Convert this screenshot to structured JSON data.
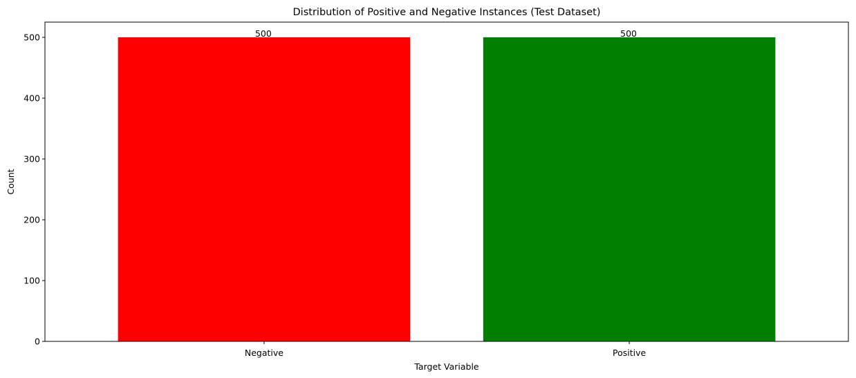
{
  "chart_data": {
    "type": "bar",
    "title": "Distribution of Positive and Negative Instances (Test Dataset)",
    "xlabel": "Target Variable",
    "ylabel": "Count",
    "categories": [
      "Negative",
      "Positive"
    ],
    "values": [
      500,
      500
    ],
    "data_labels": [
      "500",
      "500"
    ],
    "colors": [
      "#ff0000",
      "#008000"
    ],
    "ylim": [
      0,
      525
    ],
    "yticks": [
      0,
      100,
      200,
      300,
      400,
      500
    ],
    "grid": false,
    "legend": "none"
  }
}
